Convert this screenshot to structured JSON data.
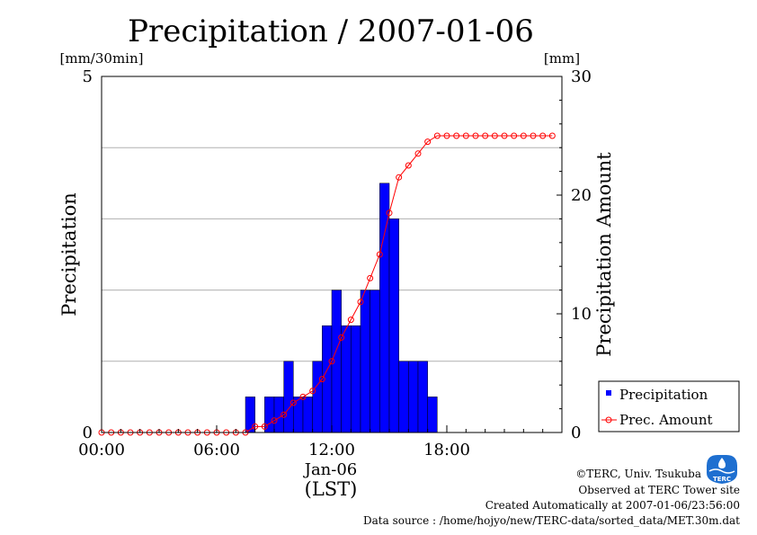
{
  "header": {
    "title": "Precipitation / 2007-01-06",
    "left_unit": "[mm/30min]",
    "right_unit": "[mm]"
  },
  "axes": {
    "left_label": "Precipitation",
    "right_label": "Precipitation Amount",
    "x_date": "Jan-06",
    "x_zone": "(LST)"
  },
  "legend": {
    "bar_label": "Precipitation",
    "line_label": "Prec. Amount"
  },
  "footer": {
    "copyright": "©TERC, Univ. Tsukuba",
    "observed": "Observed at TERC Tower site",
    "created": "Created Automatically at 2007-01-06/23:56:00",
    "source": "Data source : /home/hojyo/new/TERC-data/sorted_data/MET.30m.dat",
    "logo_text": "TERC"
  },
  "colors": {
    "bars": "#0000ff",
    "line": "#ff0000",
    "grid": "#b0b0b0",
    "logo": "#1e6fd0"
  },
  "chart_data": {
    "type": "bar",
    "x_unit": "hours (LST)",
    "x_range": [
      0,
      24
    ],
    "x_ticks": [
      {
        "value": 0,
        "label": "00:00"
      },
      {
        "value": 6,
        "label": "06:00"
      },
      {
        "value": 12,
        "label": "12:00"
      },
      {
        "value": 18,
        "label": "18:00"
      }
    ],
    "y_left": {
      "range": [
        0,
        5
      ],
      "ticks": [
        0,
        5
      ],
      "gridlines": [
        1,
        2,
        3,
        4
      ]
    },
    "y_right": {
      "range": [
        0,
        30
      ],
      "ticks": [
        0,
        10,
        20,
        30
      ]
    },
    "grid": true,
    "legend_position": "bottom-right, outside plot",
    "series": [
      {
        "name": "Precipitation",
        "kind": "bar",
        "axis": "left",
        "x": [
          7.5,
          8.0,
          8.5,
          9.0,
          9.5,
          10.0,
          10.5,
          11.0,
          11.5,
          12.0,
          12.5,
          13.0,
          13.5,
          14.0,
          14.5,
          15.0,
          15.5,
          16.0,
          16.5,
          17.0
        ],
        "values": [
          0.5,
          0,
          0.5,
          0.5,
          1.0,
          0.5,
          0.5,
          1.0,
          1.5,
          2.0,
          1.5,
          1.5,
          2.0,
          2.0,
          3.5,
          3.0,
          1.0,
          1.0,
          1.0,
          0.5
        ]
      },
      {
        "name": "Prec. Amount",
        "kind": "line",
        "axis": "right",
        "x": [
          0,
          0.5,
          1,
          1.5,
          2,
          2.5,
          3,
          3.5,
          4,
          4.5,
          5,
          5.5,
          6,
          6.5,
          7,
          7.5,
          8,
          8.5,
          9,
          9.5,
          10,
          10.5,
          11,
          11.5,
          12,
          12.5,
          13,
          13.5,
          14,
          14.5,
          15,
          15.5,
          16,
          16.5,
          17,
          17.5,
          18,
          18.5,
          19,
          19.5,
          20,
          20.5,
          21,
          21.5,
          22,
          22.5,
          23,
          23.5
        ],
        "values": [
          0,
          0,
          0,
          0,
          0,
          0,
          0,
          0,
          0,
          0,
          0,
          0,
          0,
          0,
          0,
          0,
          0.5,
          0.5,
          1.0,
          1.5,
          2.5,
          3.0,
          3.5,
          4.5,
          6.0,
          8.0,
          9.5,
          11.0,
          13.0,
          15.0,
          18.5,
          21.5,
          22.5,
          23.5,
          24.5,
          25.0,
          25.0,
          25.0,
          25.0,
          25.0,
          25.0,
          25.0,
          25.0,
          25.0,
          25.0,
          25.0,
          25.0,
          25.0
        ]
      }
    ]
  }
}
